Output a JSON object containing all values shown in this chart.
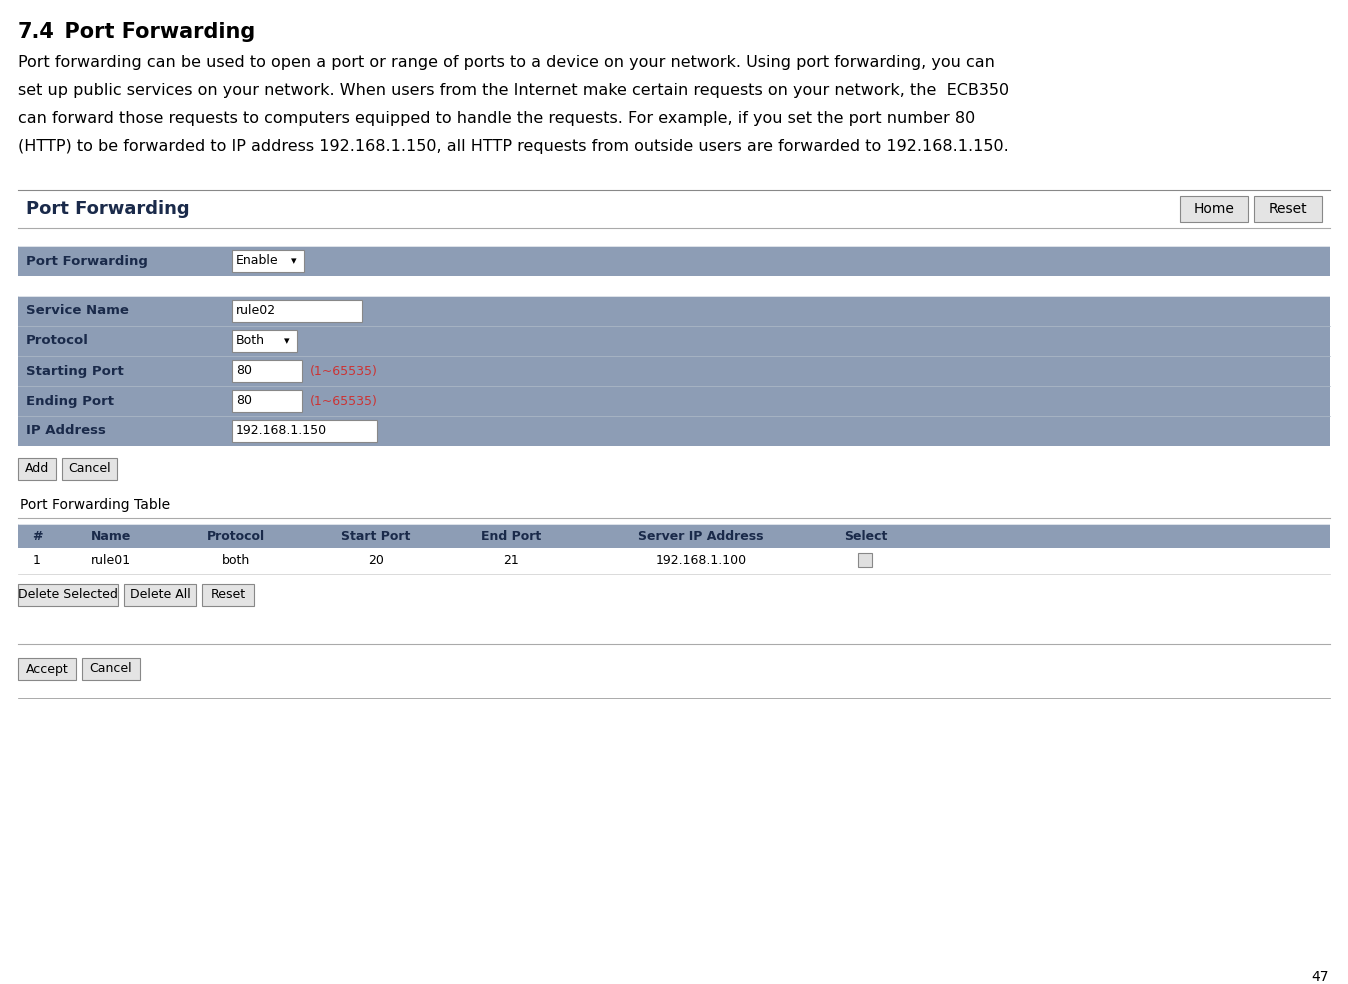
{
  "title_number": "7.4",
  "title_text": "  Port Forwarding",
  "paragraph_lines": [
    "Port forwarding can be used to open a port or range of ports to a device on your network. Using port forwarding, you can",
    "set up public services on your network. When users from the Internet make certain requests on your network, the  ECB350",
    "can forward those requests to computers equipped to handle the requests. For example, if you set the port number 80",
    "(HTTP) to be forwarded to IP address 192.168.1.150, all HTTP requests from outside users are forwarded to 192.168.1.150."
  ],
  "panel_title": "Port Forwarding",
  "btn_home": "Home",
  "btn_reset": "Reset",
  "bg_color": "#ffffff",
  "row_bg": "#8d9db5",
  "divider_color": "#b0bcc8",
  "label_text_color": "#1a2a4a",
  "page_number": "47",
  "form_rows": [
    {
      "label": "Port Forwarding",
      "type": "dropdown",
      "value": "Enable"
    },
    {
      "label": "Service Name",
      "type": "input",
      "value": "rule02"
    },
    {
      "label": "Protocol",
      "type": "dropdown",
      "value": "Both"
    },
    {
      "label": "Starting Port",
      "type": "input_hint",
      "value": "80",
      "hint": "(1~65535)"
    },
    {
      "label": "Ending Port",
      "type": "input_hint",
      "value": "80",
      "hint": "(1~65535)"
    },
    {
      "label": "IP Address",
      "type": "input",
      "value": "192.168.1.150"
    }
  ],
  "add_cancel_buttons": [
    "Add",
    "Cancel"
  ],
  "table_section_title": "Port Forwarding Table",
  "table_headers": [
    "#",
    "Name",
    "Protocol",
    "Start Port",
    "End Port",
    "Server IP Address",
    "Select"
  ],
  "table_col_widths": [
    38,
    110,
    140,
    140,
    130,
    250,
    80
  ],
  "table_rows": [
    [
      "1",
      "rule01",
      "both",
      "20",
      "21",
      "192.168.1.100",
      ""
    ]
  ],
  "table_buttons": [
    "Delete Selected",
    "Delete All",
    "Reset"
  ],
  "bottom_buttons": [
    "Accept",
    "Cancel"
  ]
}
